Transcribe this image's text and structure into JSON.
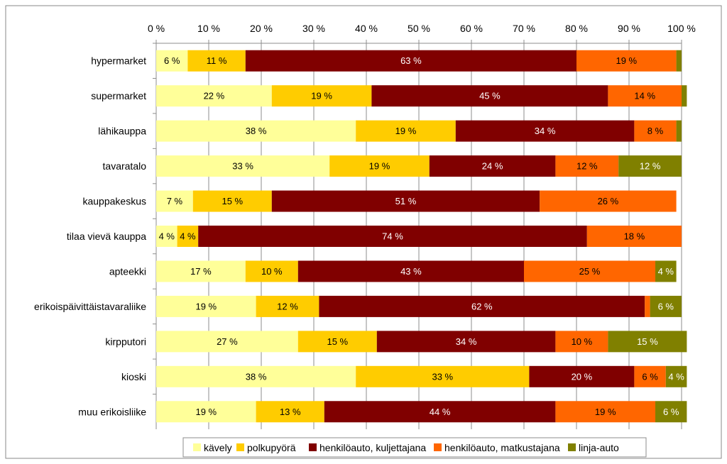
{
  "chart_data": {
    "type": "bar",
    "orientation": "horizontal",
    "stacked": true,
    "title": "",
    "xlabel": "",
    "ylabel": "",
    "xlim": [
      0,
      100
    ],
    "x_ticks": [
      0,
      10,
      20,
      30,
      40,
      50,
      60,
      70,
      80,
      90,
      100
    ],
    "x_tick_labels": [
      "0 %",
      "10 %",
      "20 %",
      "30 %",
      "40 %",
      "50 %",
      "60 %",
      "70 %",
      "80 %",
      "90 %",
      "100 %"
    ],
    "x_axis_position": "top",
    "grid": true,
    "legend_position": "bottom",
    "categories": [
      "hypermarket",
      "supermarket",
      "lähikauppa",
      "tavaratalo",
      "kauppakeskus",
      "tilaa vievä kauppa",
      "apteekki",
      "erikoispäivittäistavaraliike",
      "kirpputori",
      "kioski",
      "muu erikoisliike"
    ],
    "series": [
      {
        "name": "kävely",
        "color": "#FFFF99",
        "values": [
          6,
          22,
          38,
          33,
          7,
          4,
          17,
          19,
          27,
          38,
          19
        ],
        "labels": [
          "6 %",
          "22 %",
          "38 %",
          "33 %",
          "7 %",
          "4 %",
          "17 %",
          "19 %",
          "27 %",
          "38 %",
          "19 %"
        ]
      },
      {
        "name": "polkupyörä",
        "color": "#FFCC00",
        "values": [
          11,
          19,
          19,
          19,
          15,
          4,
          10,
          12,
          15,
          33,
          13
        ],
        "labels": [
          "11 %",
          "19 %",
          "19 %",
          "19 %",
          "15 %",
          "4 %",
          "10 %",
          "12 %",
          "15 %",
          "33 %",
          "13 %"
        ]
      },
      {
        "name": "henkilöauto, kuljettajana",
        "color": "#800000",
        "values": [
          63,
          45,
          34,
          24,
          51,
          74,
          43,
          62,
          34,
          20,
          44
        ],
        "labels": [
          "63 %",
          "45 %",
          "34 %",
          "24 %",
          "51 %",
          "74 %",
          "43 %",
          "62 %",
          "34 %",
          "20 %",
          "44 %"
        ]
      },
      {
        "name": "henkilöauto, matkustajana",
        "color": "#FF6600",
        "values": [
          19,
          14,
          8,
          12,
          26,
          18,
          25,
          1,
          10,
          6,
          19
        ],
        "labels": [
          "19 %",
          "14 %",
          "8 %",
          "12 %",
          "26 %",
          "18 %",
          "25 %",
          "",
          "10 %",
          "6 %",
          "19 %"
        ]
      },
      {
        "name": "linja-auto",
        "color": "#808000",
        "values": [
          1,
          1,
          1,
          12,
          0,
          0,
          4,
          6,
          15,
          4,
          6
        ],
        "labels": [
          "",
          "",
          "",
          "12 %",
          "",
          "",
          "4 %",
          "6 %",
          "15 %",
          "4 %",
          "6 %"
        ]
      }
    ]
  }
}
